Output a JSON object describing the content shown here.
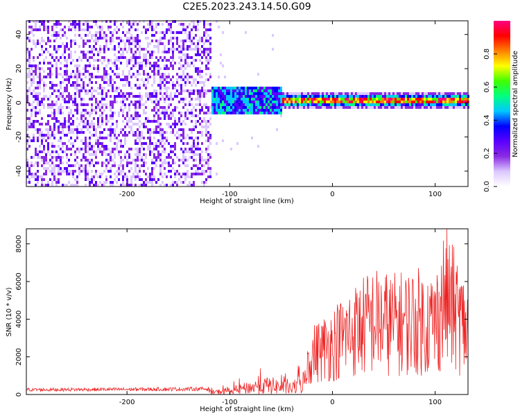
{
  "title": "C2E5.2023.243.14.50.G09",
  "chart_data": [
    {
      "type": "heatmap",
      "xlabel": "Height of straight line (km)",
      "ylabel": "Frequency (Hz)",
      "xlim": [
        -298,
        132
      ],
      "ylim": [
        -49,
        48
      ],
      "xticks": [
        -200,
        -100,
        0,
        100
      ],
      "yticks": [
        -40,
        -20,
        0,
        20,
        40
      ],
      "colorbar": {
        "label": "Normalized spectral amplitude",
        "range": [
          0,
          1
        ],
        "ticks": [
          "0.0",
          "0.2",
          "0.4",
          "0.6",
          "0.8"
        ],
        "tick_values": [
          0,
          0.2,
          0.4,
          0.6,
          0.8
        ],
        "colormap": [
          "#ffffff",
          "#dcc8ff",
          "#8a2be2",
          "#5a00ff",
          "#0000ff",
          "#00c8ff",
          "#00ff80",
          "#40ff00",
          "#ffff00",
          "#ff8000",
          "#ff0000",
          "#ff0080"
        ]
      },
      "features": {
        "noise_region_x": [
          -298,
          -118
        ],
        "transition_x": [
          -118,
          -50
        ],
        "signal_track_freq_hz": 0
      },
      "grid": false
    },
    {
      "type": "line",
      "xlabel": "Height of straight line (km)",
      "ylabel": "SNR (10 * v/v)",
      "xlim": [
        -298,
        132
      ],
      "ylim": [
        0,
        8800
      ],
      "xticks": [
        -200,
        -100,
        0,
        100
      ],
      "yticks": [
        0,
        2000,
        4000,
        6000,
        8000
      ],
      "color": "#ee2222",
      "envelope": {
        "x": [
          -298,
          -200,
          -120,
          -100,
          -80,
          -60,
          -40,
          -30,
          -20,
          0,
          20,
          40,
          60,
          80,
          100,
          110,
          132
        ],
        "y": [
          300,
          320,
          350,
          600,
          1200,
          1600,
          1000,
          2000,
          3500,
          4500,
          5600,
          6500,
          6200,
          6500,
          6300,
          8700,
          5500
        ]
      },
      "grid": false
    }
  ]
}
